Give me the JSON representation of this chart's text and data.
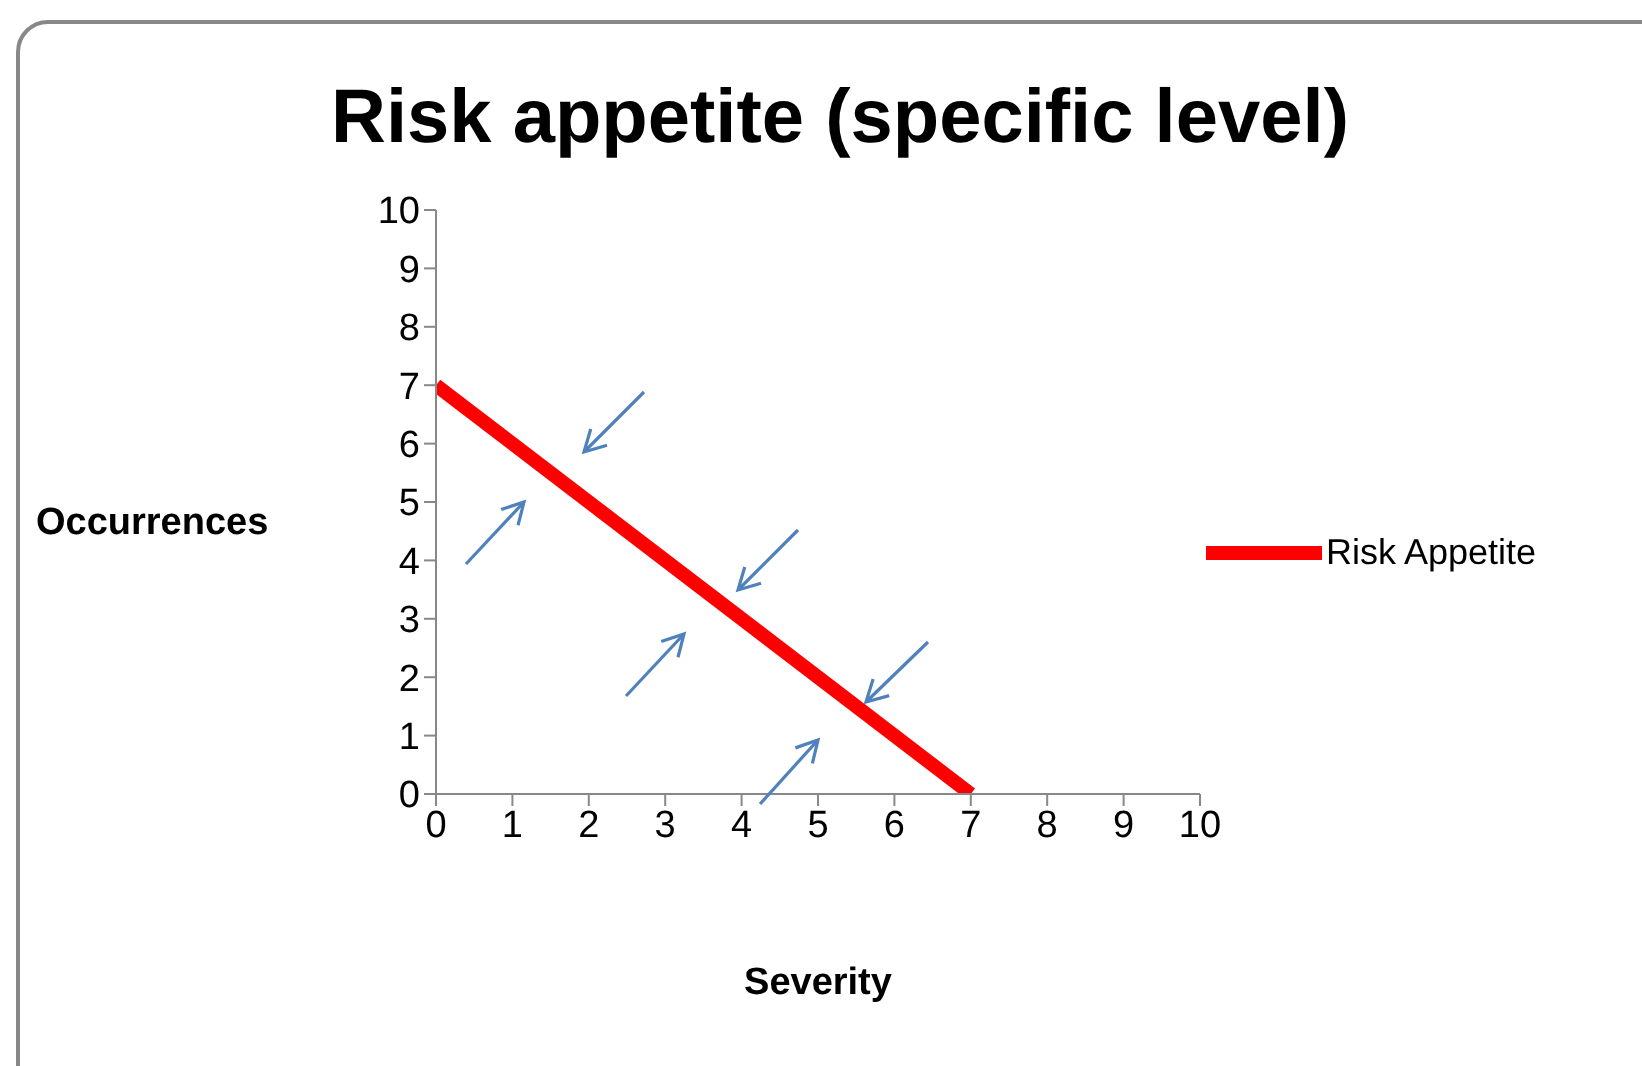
{
  "chart_data": {
    "type": "line",
    "title": "Risk appetite (specific level)",
    "xlabel": "Severity",
    "ylabel": "Occurrences",
    "x": [
      0,
      7
    ],
    "series": [
      {
        "name": "Risk Appetite",
        "color": "#ff0000",
        "values": [
          7,
          0
        ]
      }
    ],
    "xlim": [
      0,
      10
    ],
    "xticks": [
      0,
      1,
      2,
      3,
      4,
      5,
      6,
      7,
      8,
      9,
      10
    ],
    "ylim": [
      0,
      10
    ],
    "yticks": [
      0,
      1,
      2,
      3,
      4,
      5,
      6,
      7,
      8,
      9,
      10
    ],
    "grid": false,
    "legend": "right",
    "marker": "none",
    "line_style": "solid"
  }
}
